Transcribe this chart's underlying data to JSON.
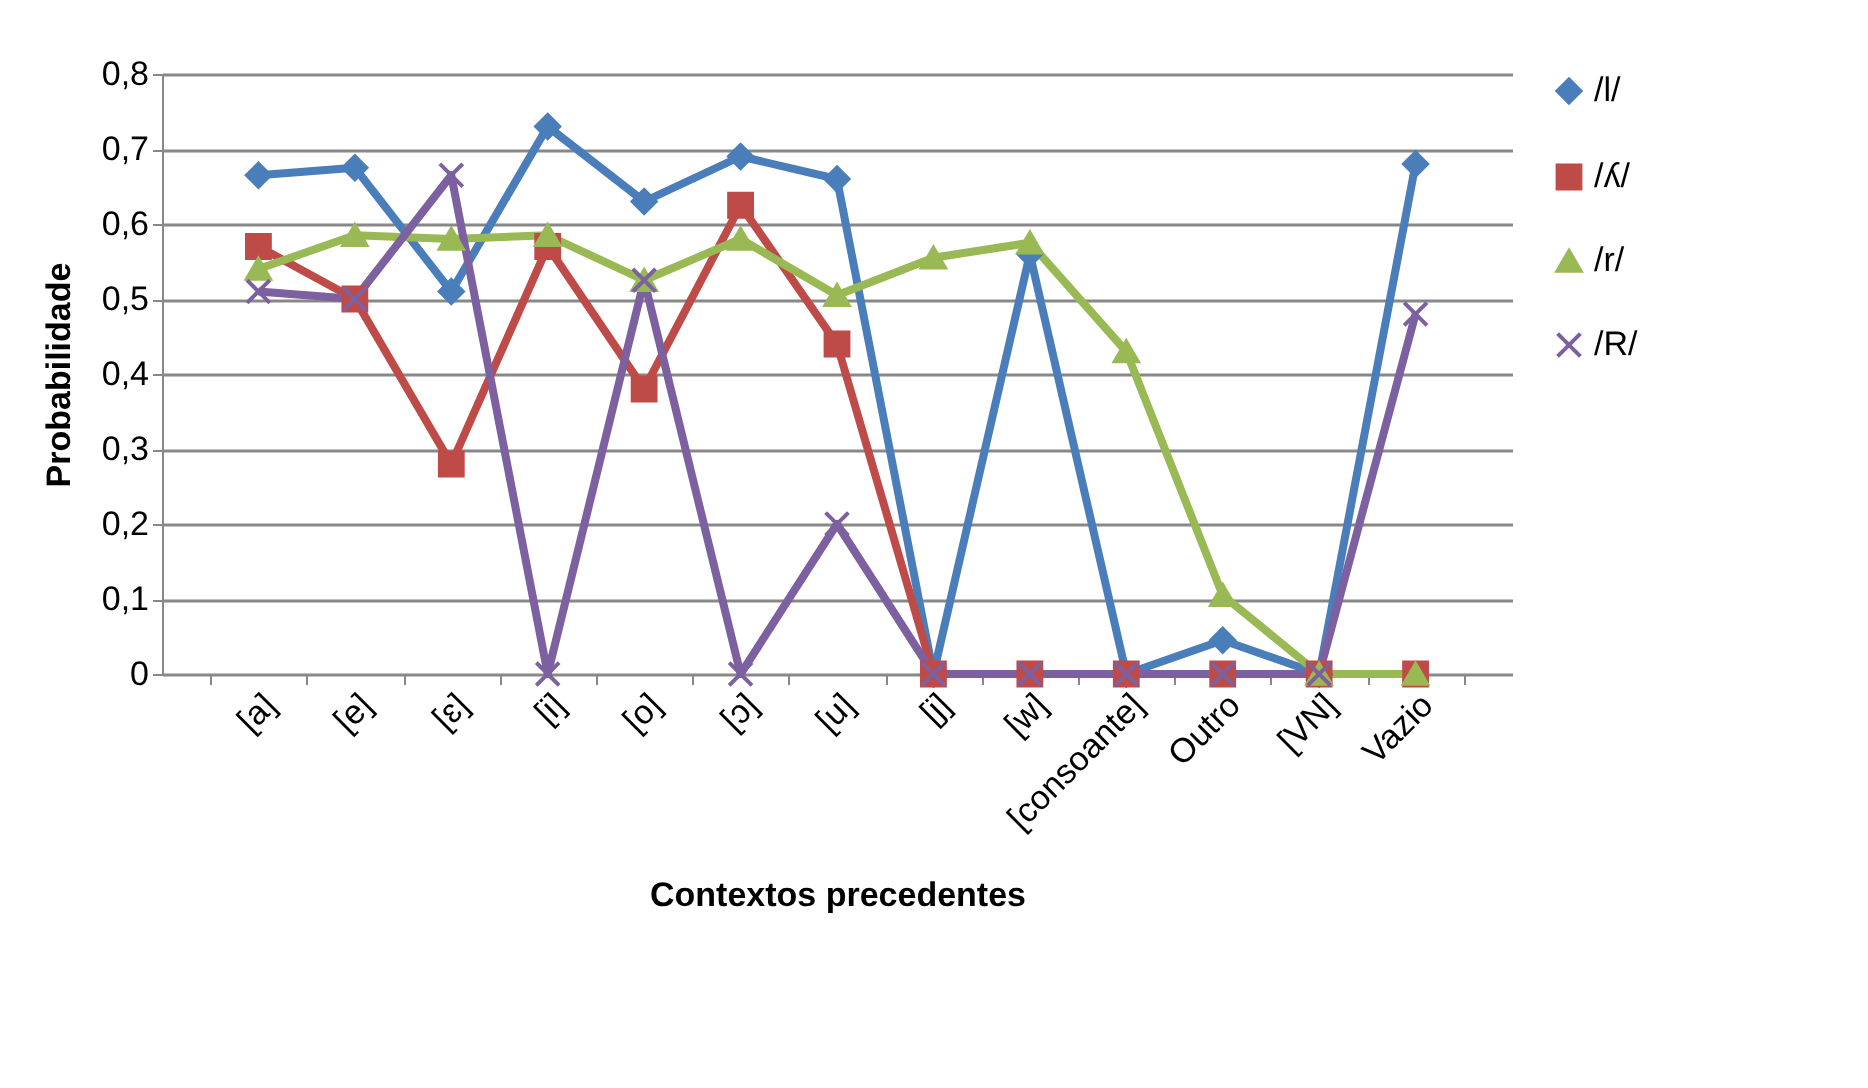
{
  "chart_data": {
    "type": "line",
    "xlabel": "Contextos precedentes",
    "ylabel": "Probabilidade",
    "categories": [
      "[a]",
      "[e]",
      "[ɛ]",
      "[i]",
      "[o]",
      "[ɔ]",
      "[u]",
      "[j]",
      "[w]",
      "[consoante]",
      "Outro",
      "[VN]",
      "Vazio"
    ],
    "series": [
      {
        "name": "/l/",
        "color": "#4a7ebb",
        "marker": "diamond",
        "values": [
          0.665,
          0.675,
          0.51,
          0.73,
          0.63,
          0.69,
          0.66,
          0,
          0.56,
          0,
          0.045,
          0,
          0.68
        ]
      },
      {
        "name": "/ʎ/",
        "color": "#be4b48",
        "marker": "square",
        "values": [
          0.57,
          0.5,
          0.28,
          0.57,
          0.38,
          0.625,
          0.44,
          0,
          0,
          0,
          0,
          0,
          0
        ]
      },
      {
        "name": "/r/",
        "color": "#98b954",
        "marker": "triangle",
        "values": [
          0.54,
          0.585,
          0.58,
          0.585,
          0.525,
          0.58,
          0.505,
          0.555,
          0.575,
          0.43,
          0.105,
          0,
          0
        ]
      },
      {
        "name": "/R/",
        "color": "#7d60a0",
        "marker": "cross",
        "values": [
          0.51,
          0.5,
          0.665,
          0,
          0.525,
          0,
          0.2,
          0,
          0,
          0,
          0,
          0,
          0.48
        ]
      }
    ],
    "ylim": [
      0,
      0.8
    ],
    "yticks": [
      {
        "value": 0,
        "label": "0"
      },
      {
        "value": 0.1,
        "label": "0,1"
      },
      {
        "value": 0.2,
        "label": "0,2"
      },
      {
        "value": 0.3,
        "label": "0,3"
      },
      {
        "value": 0.4,
        "label": "0,4"
      },
      {
        "value": 0.5,
        "label": "0,5"
      },
      {
        "value": 0.6,
        "label": "0,6"
      },
      {
        "value": 0.7,
        "label": "0,7"
      },
      {
        "value": 0.8,
        "label": "0,8"
      }
    ],
    "grid": "y",
    "legend": "right"
  }
}
